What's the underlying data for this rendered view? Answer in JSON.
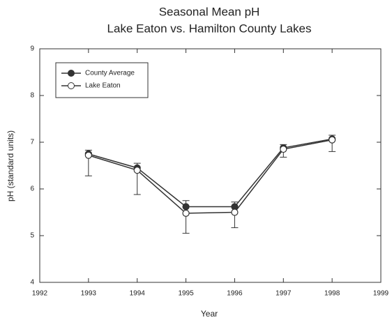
{
  "chart_data": {
    "type": "line",
    "title": "Seasonal Mean pH",
    "subtitle": "Lake Eaton vs. Hamilton County Lakes",
    "x_label": "Year",
    "y_label": "pH (standard units)",
    "x": [
      1993,
      1994,
      1995,
      1996,
      1997,
      1998
    ],
    "series": [
      {
        "name": "County Average",
        "color": "#333333",
        "marker": "filled",
        "error_direction": "up",
        "values": [
          6.75,
          6.45,
          5.62,
          5.62,
          6.88,
          7.07
        ],
        "errors": [
          0.08,
          0.1,
          0.13,
          0.1,
          0.07,
          0.08
        ]
      },
      {
        "name": "Lake Eaton",
        "color": "#333333",
        "marker": "open",
        "error_direction": "down",
        "values": [
          6.72,
          6.4,
          5.48,
          5.5,
          6.85,
          7.05
        ],
        "errors": [
          0.44,
          0.52,
          0.43,
          0.33,
          0.17,
          0.25
        ]
      }
    ],
    "xlim": [
      1992,
      1999
    ],
    "xticks": [
      1992,
      1993,
      1994,
      1995,
      1996,
      1997,
      1998,
      1999
    ],
    "ylim": [
      4,
      9
    ],
    "yticks": [
      4,
      5,
      6,
      7,
      8,
      9
    ],
    "legend": "upper left"
  }
}
